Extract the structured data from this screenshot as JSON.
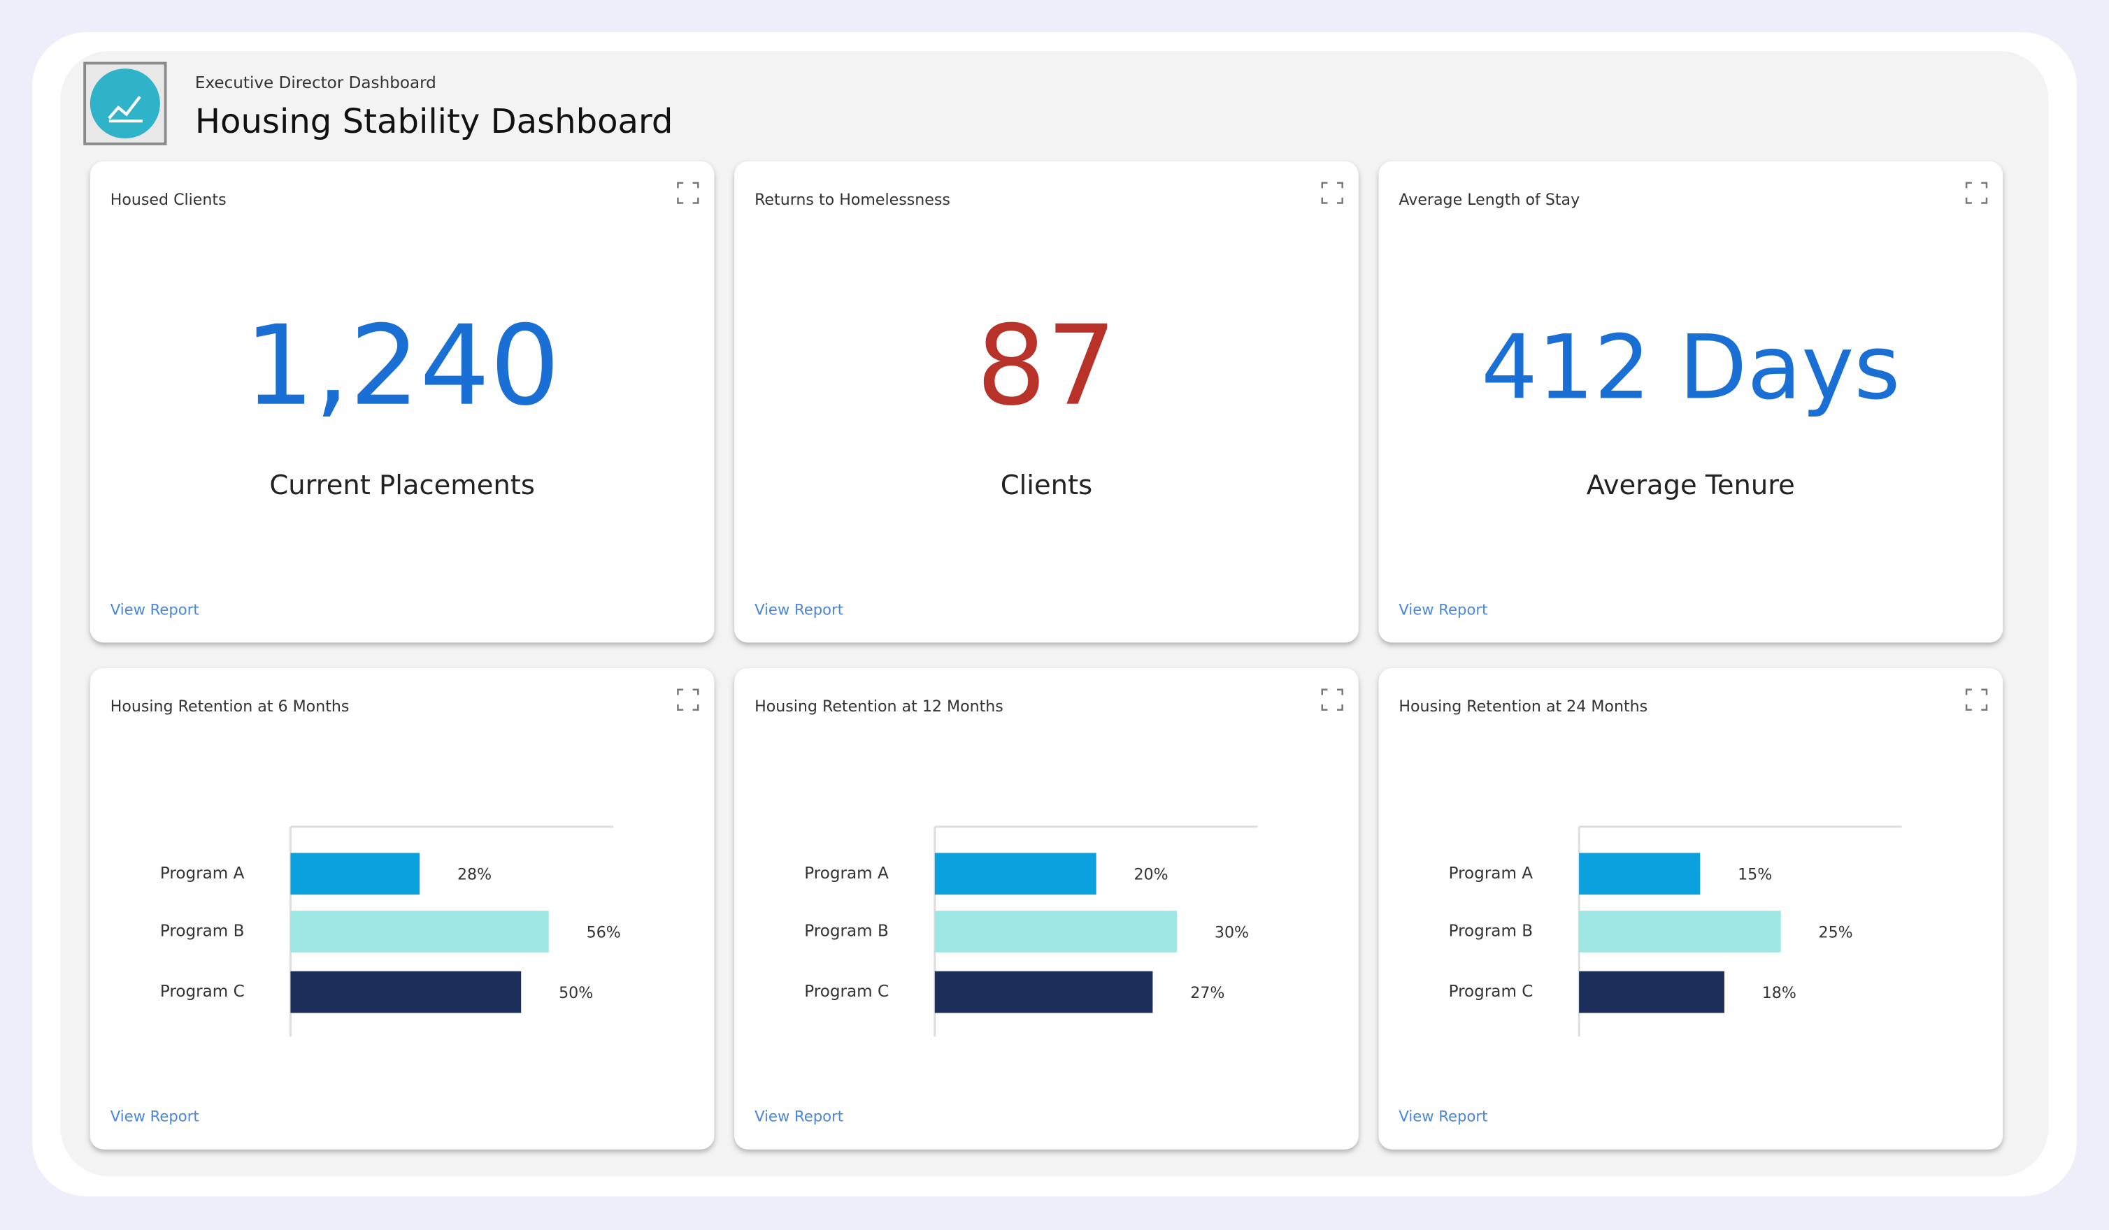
{
  "header": {
    "subtitle": "Executive Director Dashboard",
    "title": "Housing Stability Dashboard"
  },
  "card_link": "View Report",
  "kpis": [
    {
      "title": "Housed Clients",
      "value": "1,240",
      "caption": "Current Placements",
      "color": "#1a6fd4"
    },
    {
      "title": "Returns to Homelessness",
      "value": "87",
      "caption": "Clients",
      "color": "#b8322a"
    },
    {
      "title": "Average Length of Stay",
      "value": "412 Days",
      "caption": "Average Tenure",
      "color": "#1a6fd4"
    }
  ],
  "chart_data": [
    {
      "type": "bar",
      "orientation": "horizontal",
      "title": "Housing Retention at 6 Months",
      "categories": [
        "Program A",
        "Program B",
        "Program C"
      ],
      "values": [
        28,
        56,
        50
      ],
      "value_labels": [
        "28%",
        "56%",
        "50%"
      ],
      "colors": [
        "#0ba0de",
        "#9fe7e4",
        "#1b2d59"
      ],
      "xlim": [
        0,
        70
      ]
    },
    {
      "type": "bar",
      "orientation": "horizontal",
      "title": "Housing Retention at 12 Months",
      "categories": [
        "Program A",
        "Program B",
        "Program C"
      ],
      "values": [
        20,
        30,
        27
      ],
      "value_labels": [
        "20%",
        "30%",
        "27%"
      ],
      "colors": [
        "#0ba0de",
        "#9fe7e4",
        "#1b2d59"
      ],
      "xlim": [
        0,
        40
      ]
    },
    {
      "type": "bar",
      "orientation": "horizontal",
      "title": "Housing Retention at 24 Months",
      "categories": [
        "Program A",
        "Program B",
        "Program C"
      ],
      "values": [
        15,
        25,
        18
      ],
      "value_labels": [
        "15%",
        "25%",
        "18%"
      ],
      "colors": [
        "#0ba0de",
        "#9fe7e4",
        "#1b2d59"
      ],
      "xlim": [
        0,
        40
      ]
    }
  ]
}
